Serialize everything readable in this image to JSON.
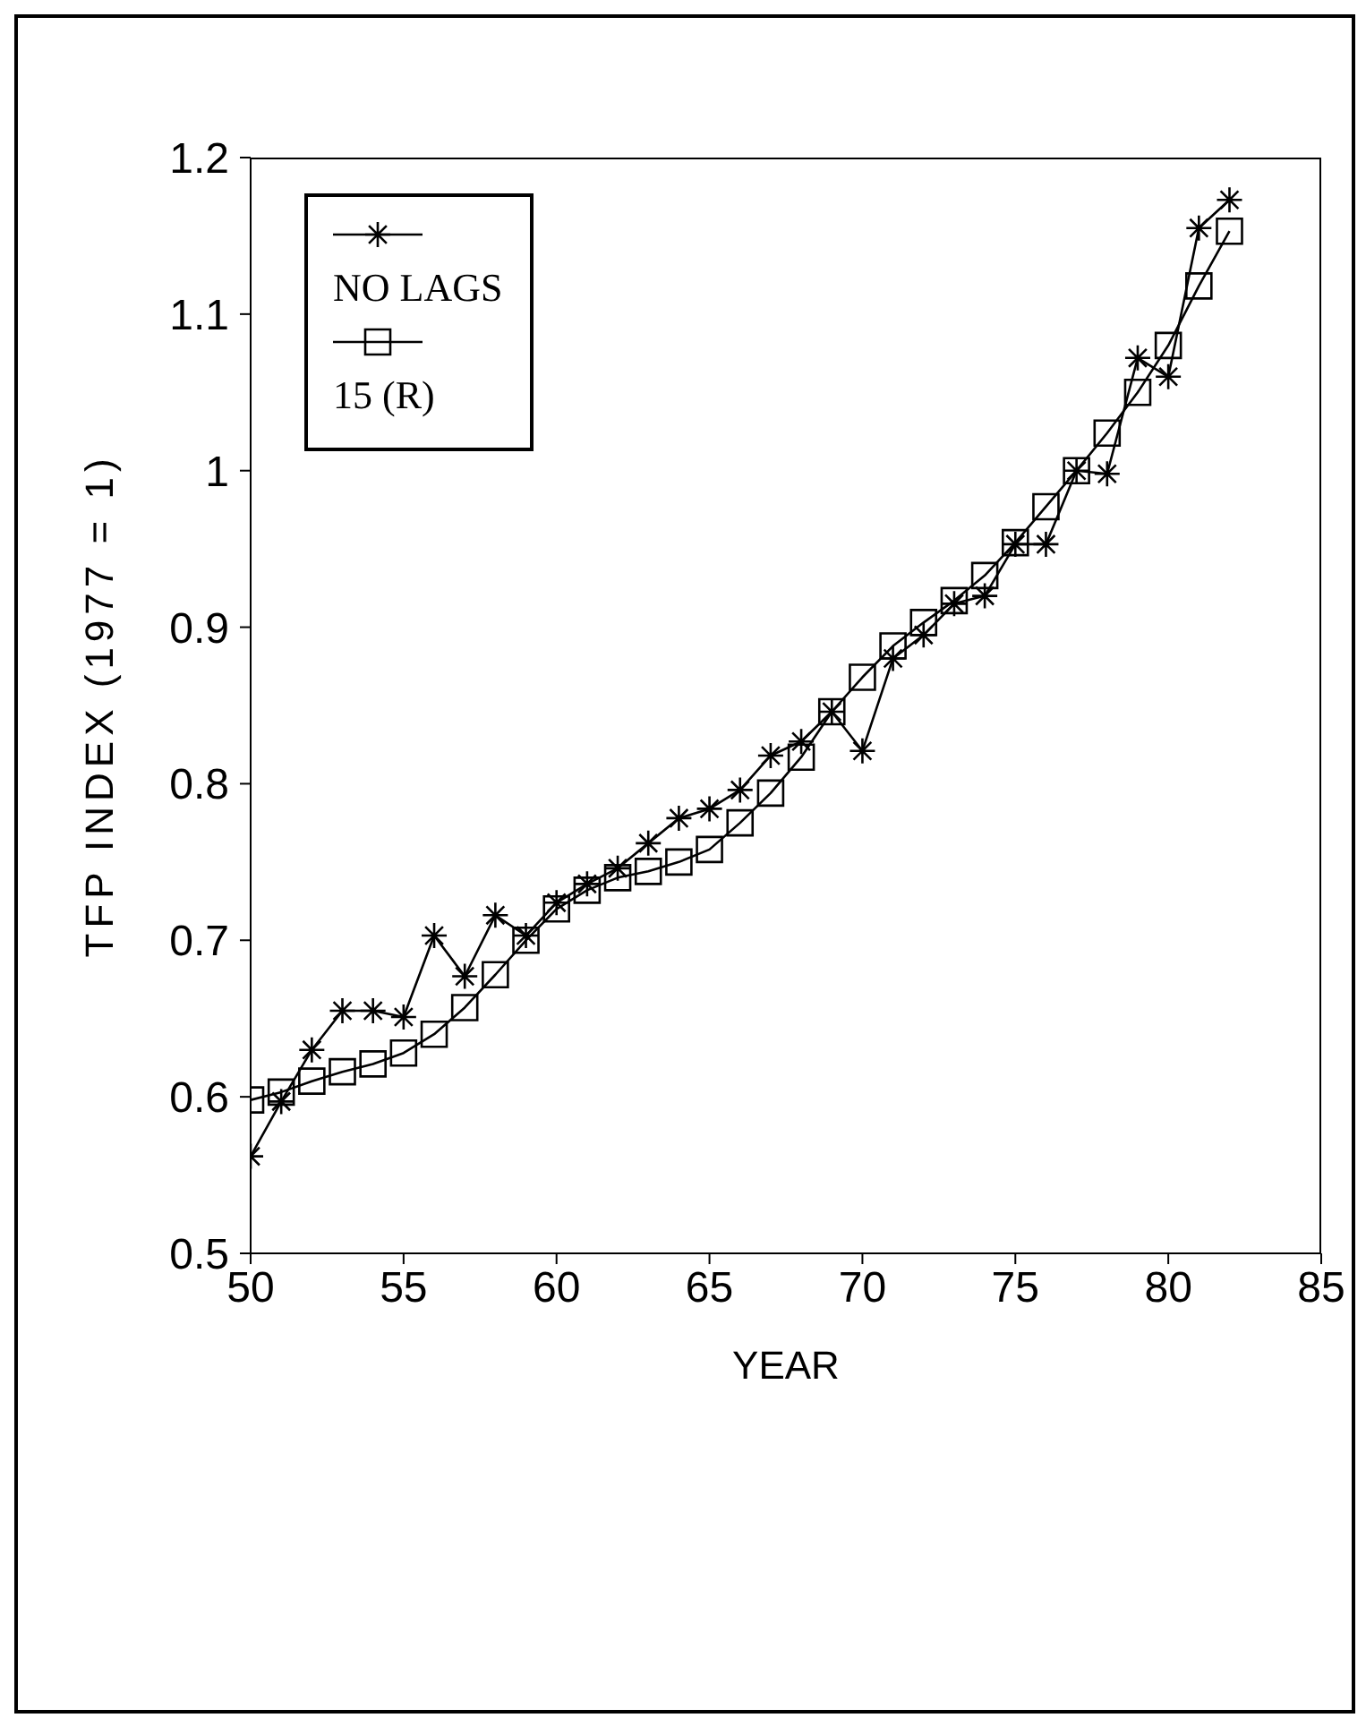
{
  "chart_data": {
    "type": "line",
    "xlabel": "YEAR",
    "ylabel": "TFP INDEX (1977 = 1)",
    "x": [
      50,
      51,
      52,
      53,
      54,
      55,
      56,
      57,
      58,
      59,
      60,
      61,
      62,
      63,
      64,
      65,
      66,
      67,
      68,
      69,
      70,
      71,
      72,
      73,
      74,
      75,
      76,
      77,
      78,
      79,
      80,
      81,
      82
    ],
    "series": [
      {
        "name": "NO LAGS",
        "color": "#000000",
        "marker": "cross",
        "values": [
          0.562,
          0.597,
          0.63,
          0.655,
          0.655,
          0.651,
          0.703,
          0.677,
          0.716,
          0.703,
          0.724,
          0.736,
          0.746,
          0.762,
          0.778,
          0.784,
          0.796,
          0.818,
          0.827,
          0.846,
          0.821,
          0.88,
          0.895,
          0.915,
          0.92,
          0.953,
          0.953,
          1.0,
          0.998,
          1.072,
          1.06,
          1.155,
          1.173
        ]
      },
      {
        "name": "15 (R)",
        "color": "#000000",
        "marker": "square",
        "values": [
          0.598,
          0.603,
          0.61,
          0.616,
          0.621,
          0.628,
          0.64,
          0.657,
          0.678,
          0.7,
          0.72,
          0.732,
          0.74,
          0.744,
          0.75,
          0.758,
          0.775,
          0.794,
          0.817,
          0.846,
          0.868,
          0.888,
          0.903,
          0.917,
          0.933,
          0.954,
          0.977,
          1.0,
          1.024,
          1.05,
          1.08,
          1.118,
          1.153
        ]
      }
    ],
    "xlim": [
      50,
      85
    ],
    "xticks": [
      50,
      55,
      60,
      65,
      70,
      75,
      80,
      85
    ],
    "ylim": [
      0.5,
      1.2
    ],
    "yticks": [
      0.5,
      0.6,
      0.7,
      0.8,
      0.9,
      1,
      1.1,
      1.2
    ],
    "grid": false,
    "legend": "top left",
    "line_style": "solid"
  }
}
